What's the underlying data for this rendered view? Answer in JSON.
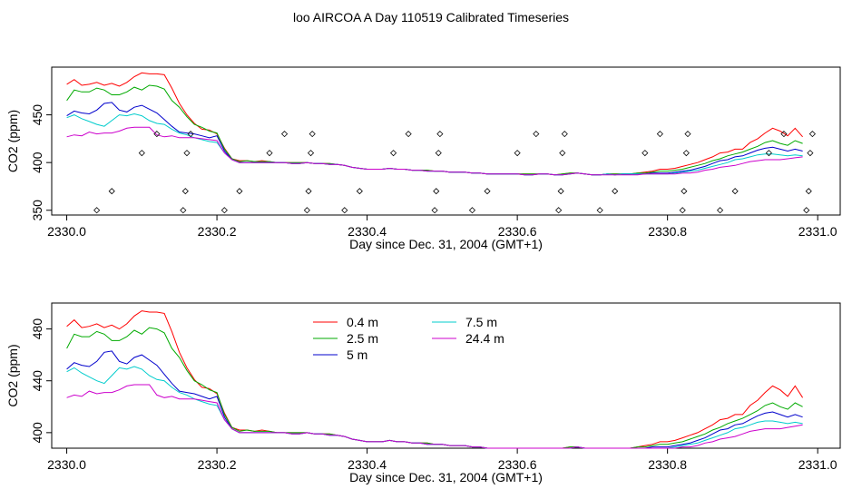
{
  "figure": {
    "title": "loo AIRCOA A  Day 110519  Calibrated Timeseries"
  },
  "chart_data": [
    {
      "type": "line",
      "xlabel": "Day since Dec. 31, 2004 (GMT+1)",
      "ylabel": "CO2 (ppm)",
      "xlim": [
        2329.98,
        2331.03
      ],
      "ylim": [
        345,
        500
      ],
      "xticks": [
        "2330.0",
        "2330.2",
        "2330.4",
        "2330.6",
        "2330.8",
        "2331.0"
      ],
      "yticks": [
        "350",
        "400",
        "450"
      ],
      "x_start": 2330.0,
      "x_step": 0.01,
      "series": [
        {
          "name": "0.4 m",
          "color": "#ff0000",
          "values": [
            482,
            487,
            481,
            482,
            484,
            481,
            483,
            480,
            484,
            490,
            494,
            493,
            493,
            492,
            478,
            462,
            450,
            441,
            435,
            434,
            430,
            415,
            404,
            402,
            402,
            401,
            402,
            401,
            400,
            400,
            400,
            400,
            400,
            399,
            399,
            399,
            398,
            397,
            395,
            394,
            393,
            393,
            393,
            394,
            393,
            393,
            392,
            392,
            392,
            391,
            391,
            390,
            390,
            390,
            389,
            389,
            388,
            388,
            388,
            388,
            388,
            388,
            388,
            388,
            388,
            387,
            388,
            389,
            389,
            388,
            387,
            387,
            388,
            388,
            388,
            388,
            389,
            390,
            391,
            393,
            393,
            394,
            396,
            398,
            400,
            403,
            406,
            410,
            411,
            414,
            414,
            421,
            425,
            431,
            436,
            433,
            428,
            436,
            427
          ]
        },
        {
          "name": "2.5 m",
          "color": "#00aa00",
          "values": [
            465,
            476,
            474,
            474,
            478,
            476,
            471,
            471,
            474,
            479,
            476,
            481,
            480,
            477,
            465,
            458,
            448,
            440,
            437,
            433,
            431,
            414,
            404,
            401,
            402,
            401,
            401,
            401,
            400,
            400,
            400,
            400,
            400,
            399,
            399,
            399,
            398,
            397,
            395,
            394,
            393,
            393,
            393,
            394,
            393,
            393,
            392,
            392,
            392,
            391,
            391,
            390,
            390,
            390,
            389,
            389,
            388,
            388,
            388,
            388,
            388,
            388,
            388,
            388,
            388,
            387,
            388,
            389,
            389,
            388,
            387,
            387,
            388,
            388,
            388,
            388,
            389,
            389,
            390,
            391,
            391,
            392,
            393,
            395,
            397,
            399,
            402,
            404,
            407,
            409,
            411,
            414,
            417,
            421,
            423,
            420,
            418,
            423,
            420
          ]
        },
        {
          "name": "5 m",
          "color": "#0000cc",
          "values": [
            449,
            454,
            452,
            451,
            455,
            462,
            463,
            455,
            453,
            458,
            460,
            456,
            452,
            445,
            438,
            432,
            431,
            430,
            428,
            426,
            428,
            412,
            403,
            400,
            400,
            400,
            400,
            400,
            400,
            400,
            399,
            399,
            400,
            399,
            399,
            398,
            398,
            397,
            395,
            394,
            393,
            393,
            393,
            394,
            393,
            393,
            392,
            392,
            391,
            391,
            391,
            390,
            390,
            390,
            389,
            389,
            388,
            388,
            388,
            388,
            388,
            387,
            387,
            388,
            388,
            387,
            387,
            388,
            389,
            388,
            387,
            387,
            388,
            387,
            388,
            388,
            388,
            388,
            389,
            389,
            389,
            390,
            391,
            392,
            394,
            396,
            399,
            402,
            403,
            406,
            407,
            410,
            413,
            415,
            416,
            414,
            412,
            414,
            412
          ]
        },
        {
          "name": "7.5 m",
          "color": "#00cccc",
          "values": [
            447,
            450,
            446,
            443,
            440,
            438,
            444,
            450,
            449,
            451,
            449,
            444,
            441,
            440,
            435,
            431,
            429,
            426,
            424,
            422,
            421,
            410,
            403,
            400,
            400,
            400,
            400,
            400,
            400,
            400,
            399,
            399,
            400,
            399,
            399,
            398,
            398,
            397,
            395,
            394,
            393,
            393,
            393,
            394,
            393,
            393,
            392,
            392,
            391,
            391,
            391,
            390,
            390,
            390,
            389,
            389,
            388,
            388,
            388,
            388,
            388,
            387,
            387,
            388,
            388,
            387,
            387,
            388,
            389,
            388,
            387,
            387,
            388,
            387,
            388,
            388,
            388,
            388,
            388,
            388,
            388,
            389,
            390,
            391,
            392,
            394,
            396,
            398,
            400,
            403,
            404,
            406,
            408,
            409,
            409,
            408,
            407,
            408,
            407
          ]
        },
        {
          "name": "24.4 m",
          "color": "#cc00cc",
          "values": [
            427,
            429,
            428,
            432,
            430,
            431,
            431,
            433,
            436,
            437,
            437,
            437,
            429,
            427,
            428,
            426,
            426,
            426,
            425,
            424,
            423,
            410,
            403,
            400,
            400,
            400,
            400,
            400,
            400,
            400,
            399,
            399,
            400,
            399,
            399,
            398,
            398,
            397,
            395,
            394,
            393,
            393,
            393,
            394,
            393,
            393,
            392,
            392,
            391,
            391,
            391,
            390,
            390,
            390,
            389,
            389,
            388,
            388,
            388,
            388,
            388,
            387,
            387,
            388,
            388,
            387,
            387,
            388,
            389,
            388,
            387,
            387,
            387,
            387,
            387,
            387,
            387,
            388,
            388,
            388,
            388,
            388,
            389,
            389,
            390,
            392,
            393,
            395,
            396,
            397,
            399,
            401,
            402,
            403,
            403,
            403,
            404,
            405,
            406
          ]
        }
      ],
      "diamonds": {
        "x": [
          2330.04,
          2330.06,
          2330.1,
          2330.12,
          2330.155,
          2330.158,
          2330.16,
          2330.165,
          2330.21,
          2330.23,
          2330.27,
          2330.29,
          2330.32,
          2330.322,
          2330.325,
          2330.327,
          2330.37,
          2330.39,
          2330.435,
          2330.455,
          2330.49,
          2330.492,
          2330.495,
          2330.497,
          2330.54,
          2330.56,
          2330.6,
          2330.625,
          2330.655,
          2330.658,
          2330.66,
          2330.663,
          2330.71,
          2330.73,
          2330.77,
          2330.79,
          2330.82,
          2330.822,
          2330.825,
          2330.827,
          2330.87,
          2330.89,
          2330.935,
          2330.955,
          2330.985,
          2330.988,
          2330.99,
          2330.993
        ],
        "y": [
          350,
          370,
          410,
          430,
          350,
          370,
          410,
          430,
          350,
          370,
          410,
          430,
          350,
          370,
          410,
          430,
          350,
          370,
          410,
          430,
          350,
          370,
          410,
          430,
          350,
          370,
          410,
          430,
          350,
          370,
          410,
          430,
          350,
          370,
          410,
          430,
          350,
          370,
          410,
          430,
          350,
          370,
          410,
          430,
          350,
          370,
          410,
          430
        ]
      }
    },
    {
      "type": "line",
      "xlabel": "Day since Dec. 31, 2004 (GMT+1)",
      "ylabel": "CO2 (ppm)",
      "xlim": [
        2329.98,
        2331.03
      ],
      "ylim": [
        388,
        500
      ],
      "xticks": [
        "2330.0",
        "2330.2",
        "2330.4",
        "2330.6",
        "2330.8",
        "2331.0"
      ],
      "yticks": [
        "400",
        "440",
        "480"
      ],
      "legend_position": "top-center",
      "series_ref": "same series as panel 1"
    }
  ]
}
